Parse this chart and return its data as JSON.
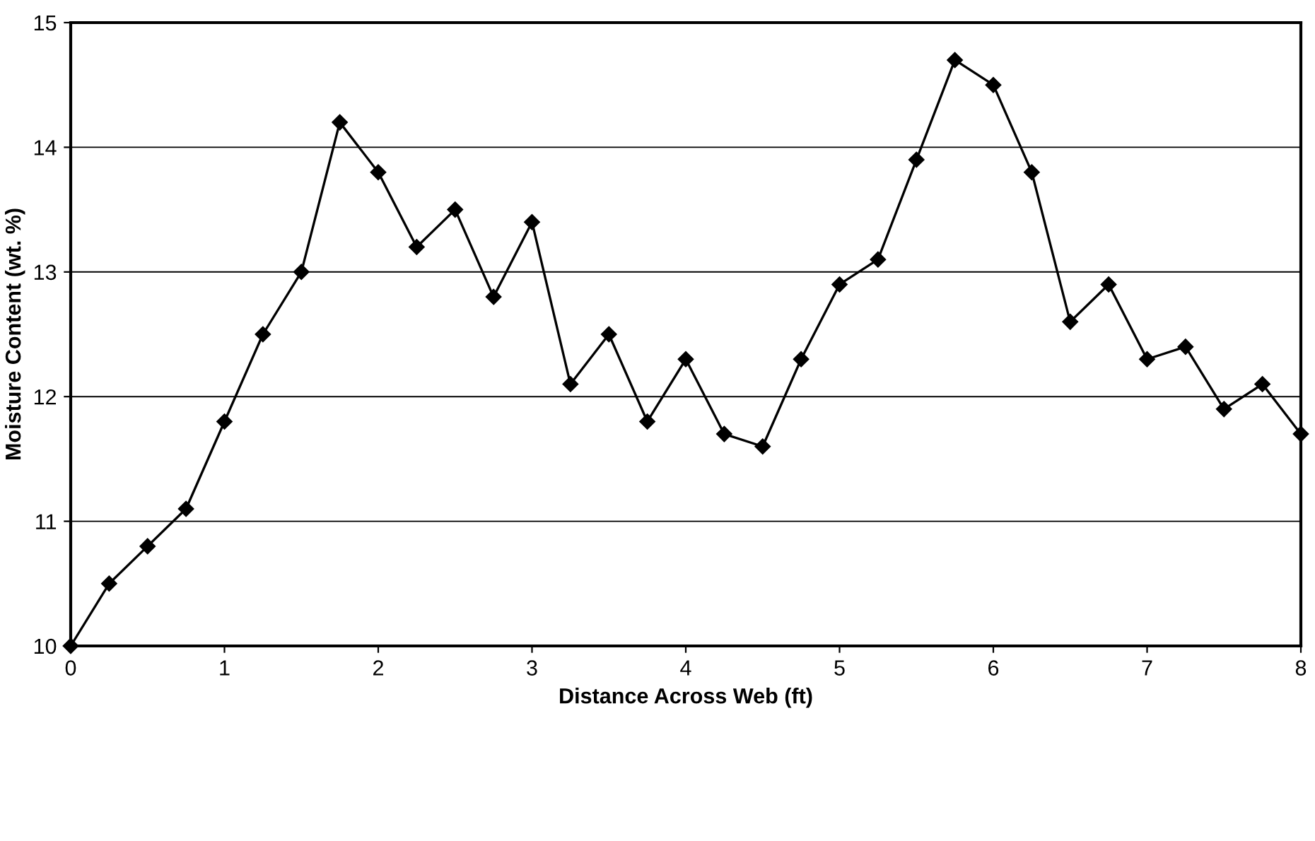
{
  "chart_data": {
    "type": "line",
    "xlabel": "Distance Across Web (ft)",
    "ylabel": "Moisture Content (wt. %)",
    "x": [
      0,
      0.25,
      0.5,
      0.75,
      1,
      1.25,
      1.5,
      1.75,
      2,
      2.25,
      2.5,
      2.75,
      3,
      3.25,
      3.5,
      3.75,
      4,
      4.25,
      4.5,
      4.75,
      5,
      5.25,
      5.5,
      5.75,
      6,
      6.25,
      6.5,
      6.75,
      7,
      7.25,
      7.5,
      7.75,
      8
    ],
    "series": [
      {
        "color": "#000000",
        "values": [
          10.0,
          10.5,
          10.8,
          11.1,
          11.8,
          12.5,
          13.0,
          14.2,
          13.8,
          13.2,
          13.5,
          12.8,
          13.4,
          12.1,
          12.5,
          11.8,
          12.3,
          11.7,
          11.6,
          12.3,
          12.9,
          13.1,
          13.9,
          14.7,
          14.5,
          13.8,
          12.6,
          12.9,
          12.3,
          12.4,
          11.9,
          12.1,
          11.7
        ]
      }
    ],
    "xlim": [
      0,
      8
    ],
    "ylim": [
      10,
      15
    ],
    "xticks": [
      0,
      1,
      2,
      3,
      4,
      5,
      6,
      7,
      8
    ],
    "yticks": [
      10,
      11,
      12,
      13,
      14,
      15
    ],
    "grid": "y",
    "marker": "diamond",
    "line_style": "solid"
  }
}
